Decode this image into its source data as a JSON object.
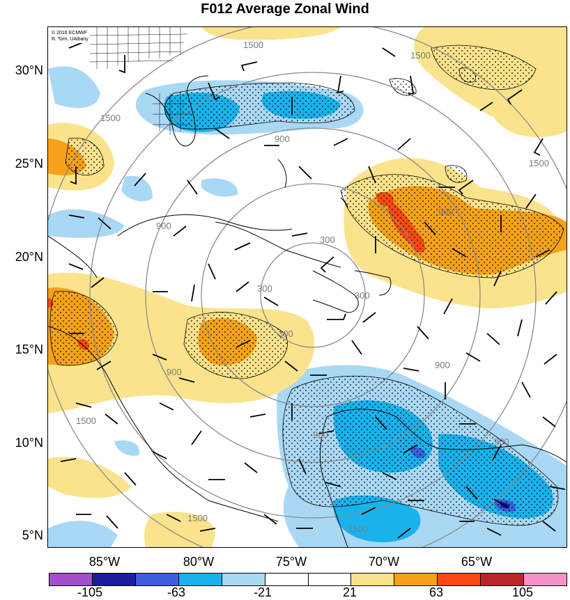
{
  "title": "F012 Average Zonal Wind",
  "credits": {
    "line1": "© 2016 ECMWF",
    "line2": "R. Torn, UAlbany"
  },
  "lat_labels": [
    "30°N",
    "25°N",
    "20°N",
    "15°N",
    "10°N",
    "5°N"
  ],
  "lon_labels": [
    "85°W",
    "80°W",
    "75°W",
    "70°W",
    "65°W"
  ],
  "contour_labels": [
    "1500",
    "1500",
    "1500",
    "1500",
    "1500",
    "1500",
    "900",
    "900",
    "900",
    "900",
    "900",
    "900",
    "300",
    "300",
    "300",
    "300",
    "900",
    "1500"
  ],
  "colorbar": {
    "labels": [
      "-105",
      "-63",
      "-21",
      "21",
      "63",
      "105"
    ],
    "colors": [
      "#a24fd0",
      "#1c1e9c",
      "#3d5fdc",
      "#19b2ec",
      "#a9d8f5",
      "#ffffff",
      "#ffffff",
      "#fae38c",
      "#f5a21a",
      "#fa4a12",
      "#b8262a",
      "#f792c6"
    ]
  },
  "colors": {
    "light_blue": "#a9d8f5",
    "blue": "#19b2ec",
    "med_blue": "#3d5fdc",
    "dark_blue": "#1c1e9c",
    "yellow": "#fae38c",
    "orange": "#f5a21a",
    "red": "#fa4a12"
  }
}
